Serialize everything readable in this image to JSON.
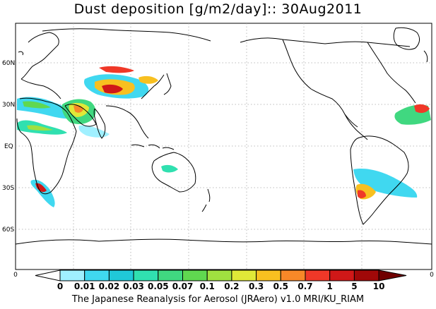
{
  "title": "Dust deposition [g/m2/day]:: 30Aug2011",
  "footer": "The Japanese Reanalysis for Aerosol (JRAero) v1.0 MRI/KU_RIAM",
  "lat_labels": [
    "60N",
    "30N",
    "EQ",
    "30S",
    "60S"
  ],
  "colorbar": {
    "levels": [
      "0",
      "0.01",
      "0.02",
      "0.03",
      "0.05",
      "0.07",
      "0.1",
      "0.2",
      "0.3",
      "0.5",
      "0.7",
      "1",
      "5",
      "10"
    ],
    "colors": [
      "#ffffff",
      "#a0f0ff",
      "#40d8f0",
      "#20c8d8",
      "#30e0b0",
      "#40d880",
      "#60d850",
      "#a0e040",
      "#e0e838",
      "#f8c020",
      "#f88828",
      "#f03828",
      "#d01818",
      "#a00808",
      "#700000"
    ],
    "left_end_label": "0",
    "right_end_label": "0"
  }
}
